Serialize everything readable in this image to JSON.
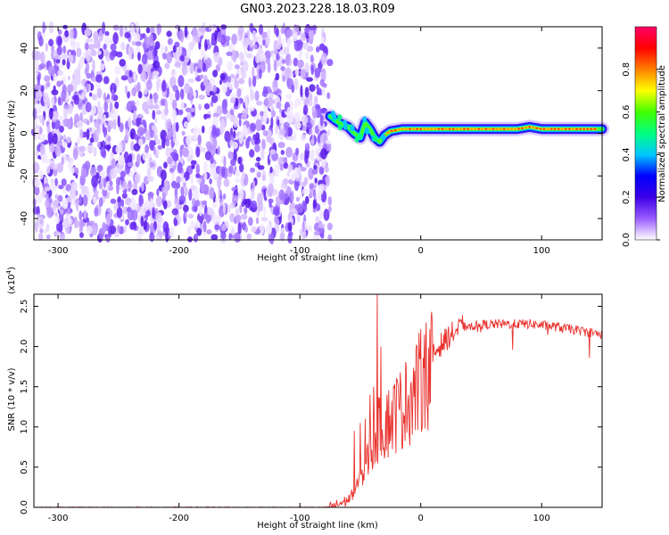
{
  "title": "GN03.2023.228.18.03.R09",
  "chart_data": [
    {
      "type": "heatmap",
      "xlabel": "Height of straight line (km)",
      "ylabel": "Frequency (Hz)",
      "xlim": [
        -320,
        150
      ],
      "ylim": [
        -50,
        50
      ],
      "x_ticks": [
        -300,
        -200,
        -100,
        0,
        100
      ],
      "y_ticks": [
        -40,
        -20,
        0,
        20,
        40
      ],
      "grid": false,
      "colorbar": {
        "label": "Normalized spectral amplitude",
        "range": [
          0.0,
          1.0
        ],
        "ticks": [
          "0.0",
          "0.2",
          "0.4",
          "0.6",
          "0.8"
        ],
        "colors": [
          "#ffffff",
          "#9a5cff",
          "#3c00e6",
          "#0000ff",
          "#00c8ff",
          "#00ff80",
          "#40ff00",
          "#ffff00",
          "#ff8000",
          "#ff0000",
          "#ff0066"
        ]
      },
      "regions": [
        {
          "name": "noise",
          "x_range": [
            -320,
            -75
          ],
          "freq_range": [
            -50,
            50
          ],
          "amplitude": "low (0.0–0.2)"
        },
        {
          "name": "signal",
          "x_range": [
            -75,
            150
          ],
          "amplitude": "high (0.6–1.0) along line",
          "centerline": [
            [
              -75,
              8
            ],
            [
              -68,
              5
            ],
            [
              -60,
              3
            ],
            [
              -55,
              0
            ],
            [
              -50,
              -2
            ],
            [
              -46,
              5
            ],
            [
              -42,
              2
            ],
            [
              -38,
              -2
            ],
            [
              -34,
              -4
            ],
            [
              -30,
              -1
            ],
            [
              -25,
              1
            ],
            [
              -15,
              2
            ],
            [
              0,
              2
            ],
            [
              20,
              2
            ],
            [
              40,
              2
            ],
            [
              60,
              2
            ],
            [
              80,
              2
            ],
            [
              90,
              3
            ],
            [
              100,
              2
            ],
            [
              120,
              2
            ],
            [
              150,
              2
            ]
          ]
        }
      ]
    },
    {
      "type": "line",
      "xlabel": "Height of straight line (km)",
      "ylabel": "SNR (10 * v/v)",
      "y_multiplier": "(x10",
      "y_multiplier_exp": "4",
      "y_multiplier_close": ")",
      "xlim": [
        -320,
        150
      ],
      "ylim": [
        0,
        2.65
      ],
      "x_ticks": [
        -300,
        -200,
        -100,
        0,
        100
      ],
      "y_ticks": [
        "0.0",
        "0.5",
        "1.0",
        "1.5",
        "2.0",
        "2.5"
      ],
      "grid": false,
      "series": [
        {
          "color": "#e8322e",
          "envelope": [
            [
              -320,
              0.0
            ],
            [
              -78,
              0.0
            ],
            [
              -72,
              0.02
            ],
            [
              -60,
              0.1
            ],
            [
              -55,
              0.2
            ],
            [
              -50,
              0.35
            ],
            [
              -45,
              0.55
            ],
            [
              -40,
              0.8
            ],
            [
              -36,
              1.0
            ],
            [
              -32,
              1.0
            ],
            [
              -25,
              1.15
            ],
            [
              -15,
              1.3
            ],
            [
              -5,
              1.5
            ],
            [
              5,
              1.75
            ],
            [
              15,
              2.0
            ],
            [
              25,
              2.15
            ],
            [
              35,
              2.25
            ],
            [
              50,
              2.27
            ],
            [
              70,
              2.28
            ],
            [
              90,
              2.28
            ],
            [
              110,
              2.25
            ],
            [
              130,
              2.2
            ],
            [
              150,
              2.15
            ]
          ],
          "peaks": [
            [
              -55,
              0.95
            ],
            [
              -50,
              1.05
            ],
            [
              -46,
              1.1
            ],
            [
              -42,
              1.4
            ],
            [
              -39,
              1.5
            ],
            [
              -36,
              2.65
            ],
            [
              -33,
              2.0
            ],
            [
              -28,
              1.4
            ],
            [
              -20,
              1.6
            ],
            [
              -12,
              1.75
            ],
            [
              -3,
              2.0
            ],
            [
              3,
              2.15
            ]
          ]
        }
      ]
    }
  ]
}
